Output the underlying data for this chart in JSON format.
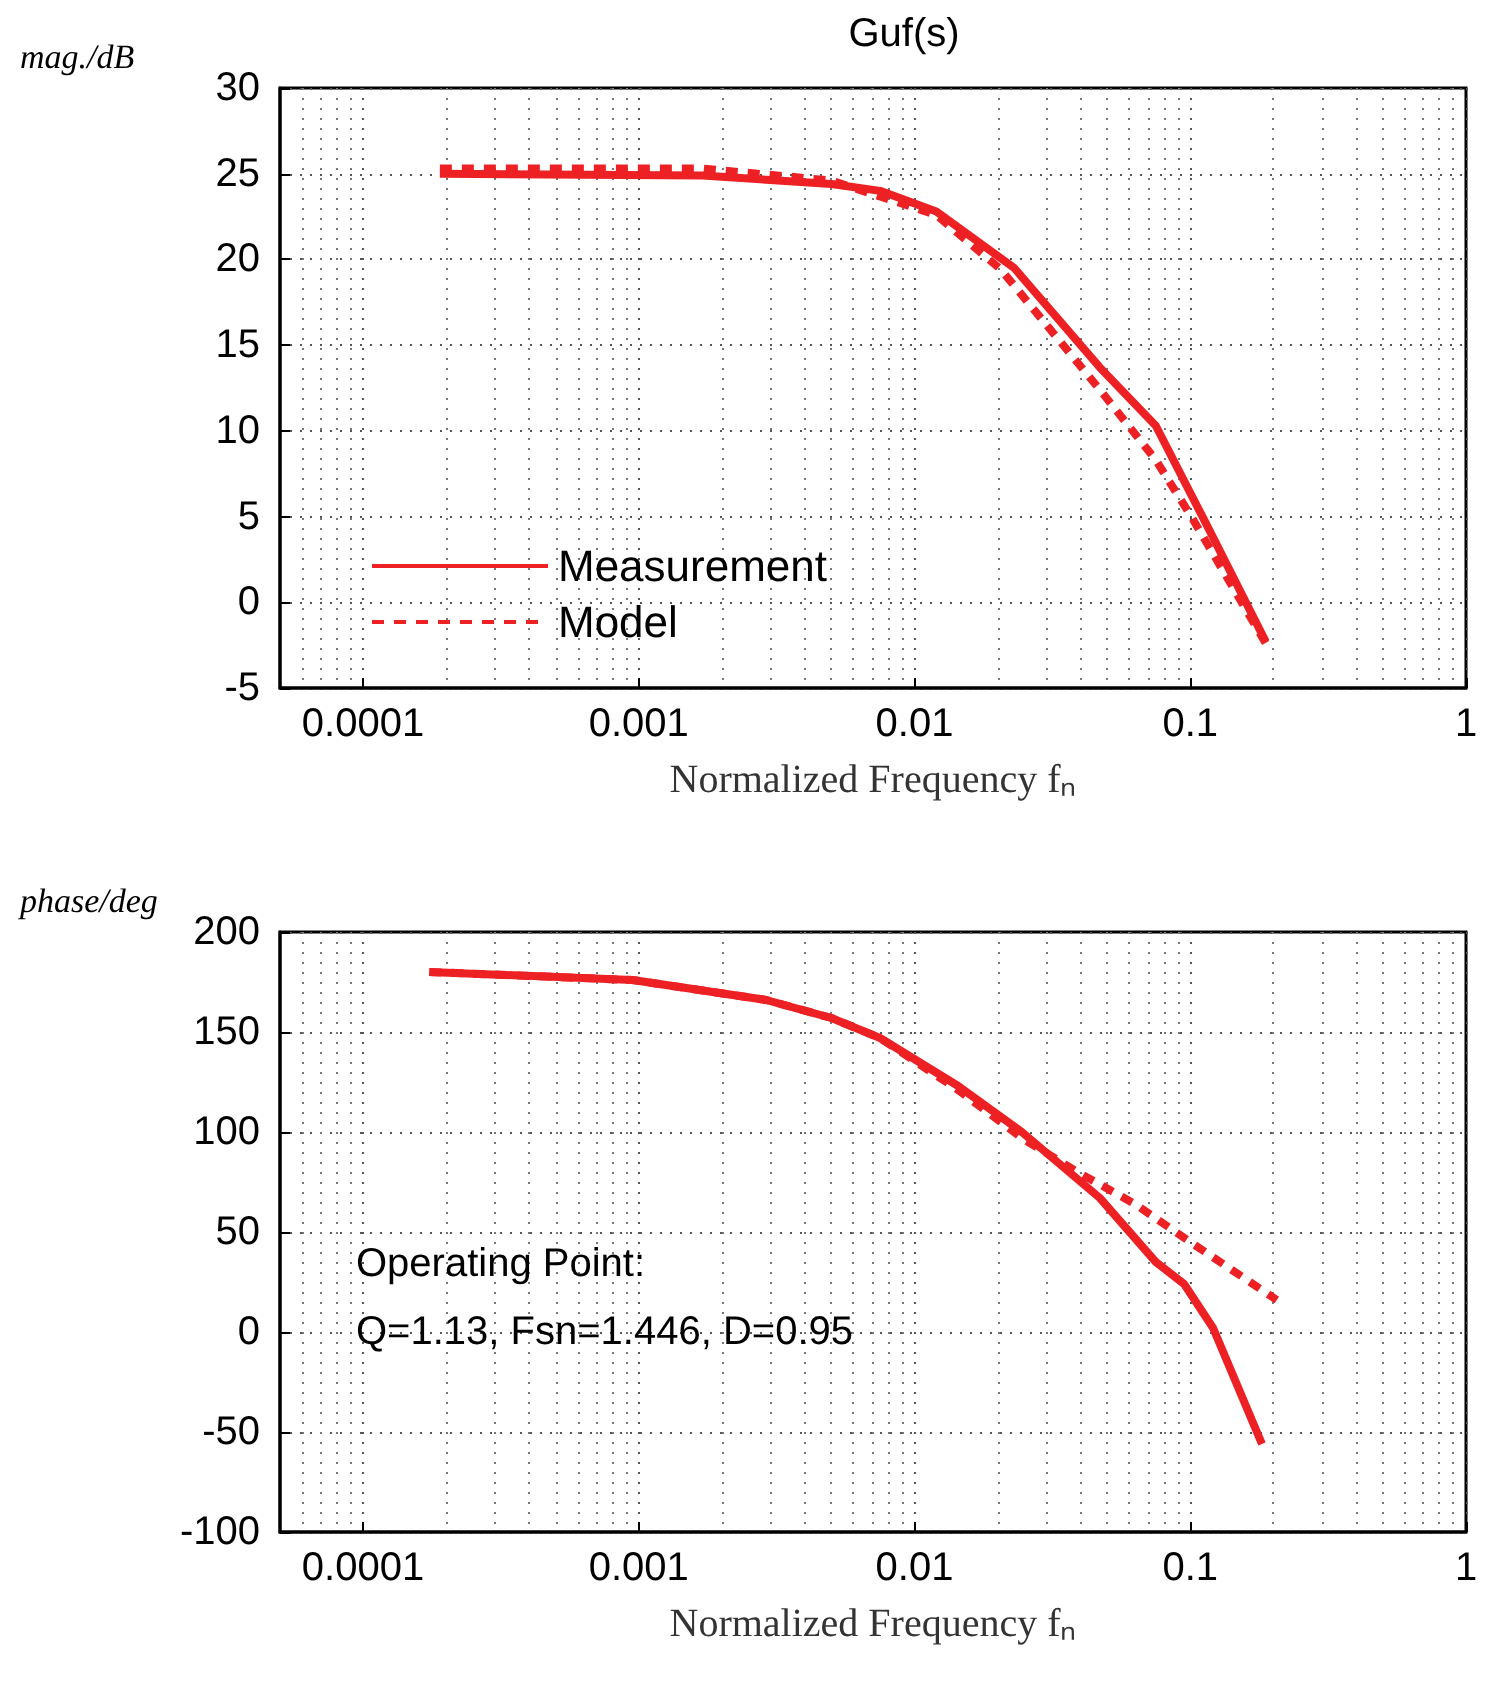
{
  "chart_data": [
    {
      "type": "line",
      "title": "Guf(s)",
      "xlabel": "Normalized Frequency fₙ",
      "ylabel": "mag./dB",
      "log": "x",
      "grid": true,
      "legend": "bottom left",
      "xlim": [
        5e-05,
        1
      ],
      "xticks": [
        0.0001,
        0.001,
        0.01,
        0.1,
        1
      ],
      "ylim": [
        -5,
        30
      ],
      "yticks": [
        -5,
        0,
        5,
        10,
        15,
        20,
        25,
        30
      ],
      "series": [
        {
          "name": "Measurement",
          "color": "#ed2024",
          "line_style": "solid",
          "x": [
            0.00019,
            0.0017,
            0.005,
            0.0075,
            0.012,
            0.023,
            0.047,
            0.075,
            0.114,
            0.188
          ],
          "values": [
            25,
            24.9,
            24.4,
            24,
            22.8,
            19.5,
            13.7,
            10.3,
            4.6,
            -2.3
          ]
        },
        {
          "name": "Model",
          "color": "#ed2024",
          "line_style": "dashed",
          "x": [
            0.00019,
            0.0017,
            0.005,
            0.012,
            0.0206,
            0.047,
            0.075,
            0.1,
            0.188
          ],
          "values": [
            25.3,
            25.3,
            24.6,
            22.6,
            19.4,
            12.4,
            8.3,
            5.1,
            -2.4
          ]
        }
      ]
    },
    {
      "type": "line",
      "xlabel": "Normalized Frequency fₙ",
      "ylabel": "phase/deg",
      "log": "x",
      "grid": true,
      "legend": false,
      "xlim": [
        5e-05,
        1
      ],
      "xticks": [
        0.0001,
        0.001,
        0.01,
        0.1,
        1
      ],
      "ylim": [
        -100,
        200
      ],
      "yticks": [
        -100,
        -50,
        0,
        50,
        100,
        150,
        200
      ],
      "annotations": [
        "Operating Point:",
        "Q=1.13, Fsn=1.446, D=0.95"
      ],
      "series": [
        {
          "color": "#ed2024",
          "line_style": "solid",
          "x": [
            0.000174,
            0.00095,
            0.0029,
            0.005,
            0.0075,
            0.0144,
            0.0245,
            0.047,
            0.075,
            0.095,
            0.121,
            0.182
          ],
          "values": [
            180,
            176,
            166,
            157,
            147,
            123,
            100,
            67,
            35,
            24,
            2,
            -56
          ]
        },
        {
          "color": "#ed2024",
          "line_style": "dashed",
          "x": [
            0.000174,
            0.00095,
            0.0029,
            0.005,
            0.0075,
            0.0144,
            0.0245,
            0.039,
            0.063,
            0.1,
            0.206
          ],
          "values": [
            180,
            176,
            166,
            157,
            147,
            121,
            97,
            80,
            64,
            45,
            16
          ]
        }
      ]
    }
  ]
}
